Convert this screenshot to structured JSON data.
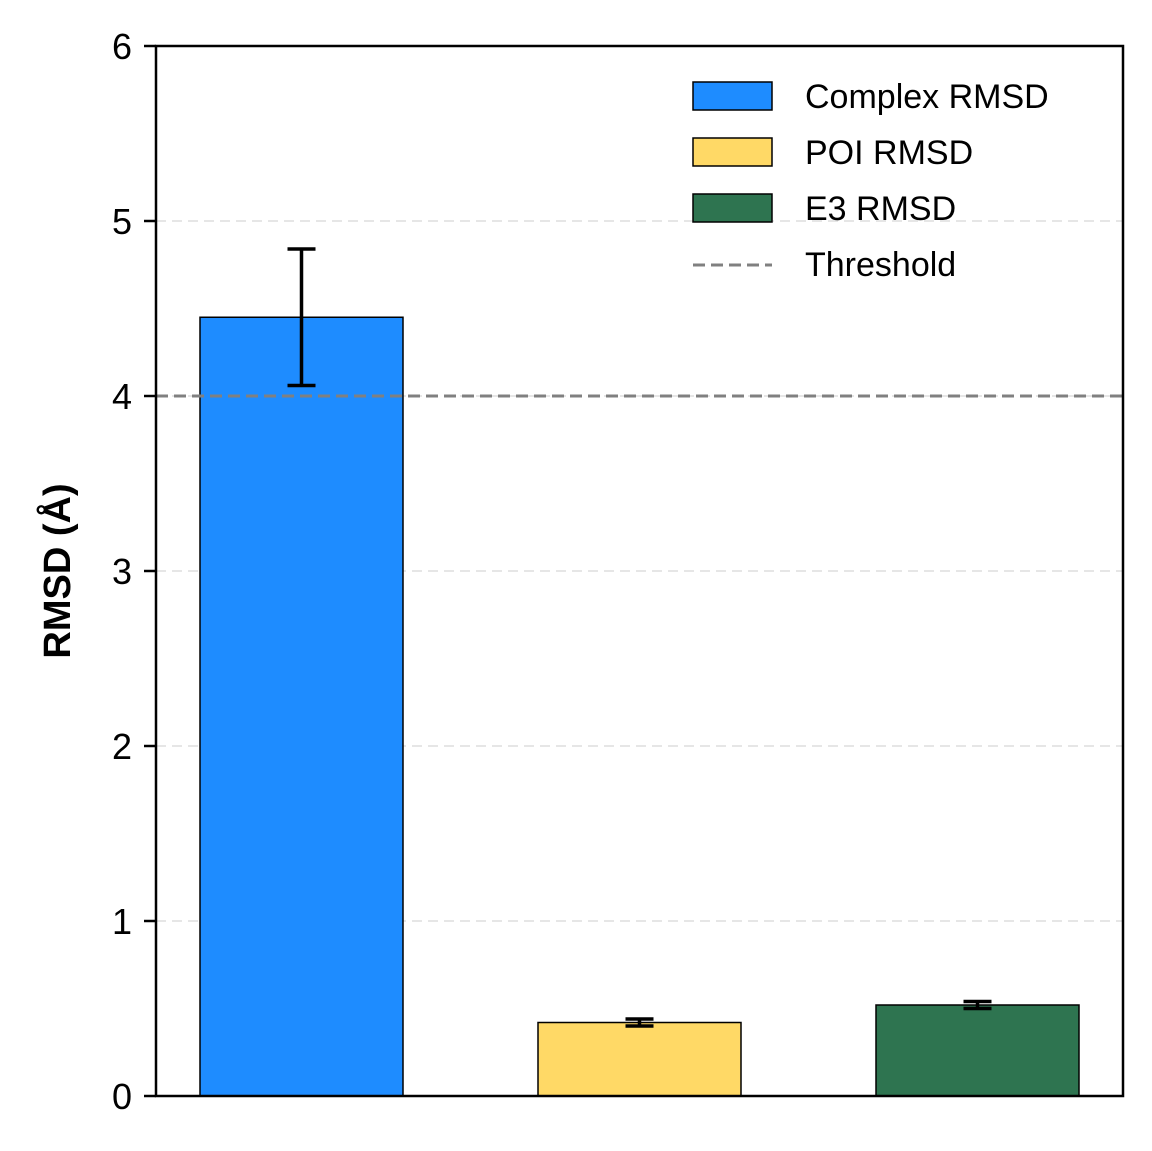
{
  "chart_data": {
    "type": "bar",
    "categories": [
      "Complex RMSD",
      "POI RMSD",
      "E3 RMSD"
    ],
    "values": [
      4.45,
      0.42,
      0.52
    ],
    "errors": [
      0.39,
      0.02,
      0.02
    ],
    "colors": [
      "#1e8cff",
      "#ffd966",
      "#2e7450"
    ],
    "threshold": 4.0,
    "threshold_color": "#808080",
    "title": "",
    "xlabel": "",
    "ylabel": "RMSD (Å)",
    "ylim": [
      0,
      6
    ],
    "yticks": [
      "0",
      "1",
      "2",
      "3",
      "4",
      "5",
      "6"
    ],
    "grid": "y-dashed-light",
    "legend_position": "upper-right",
    "legend": [
      "Complex RMSD",
      "POI RMSD",
      "E3 RMSD",
      "Threshold"
    ]
  }
}
